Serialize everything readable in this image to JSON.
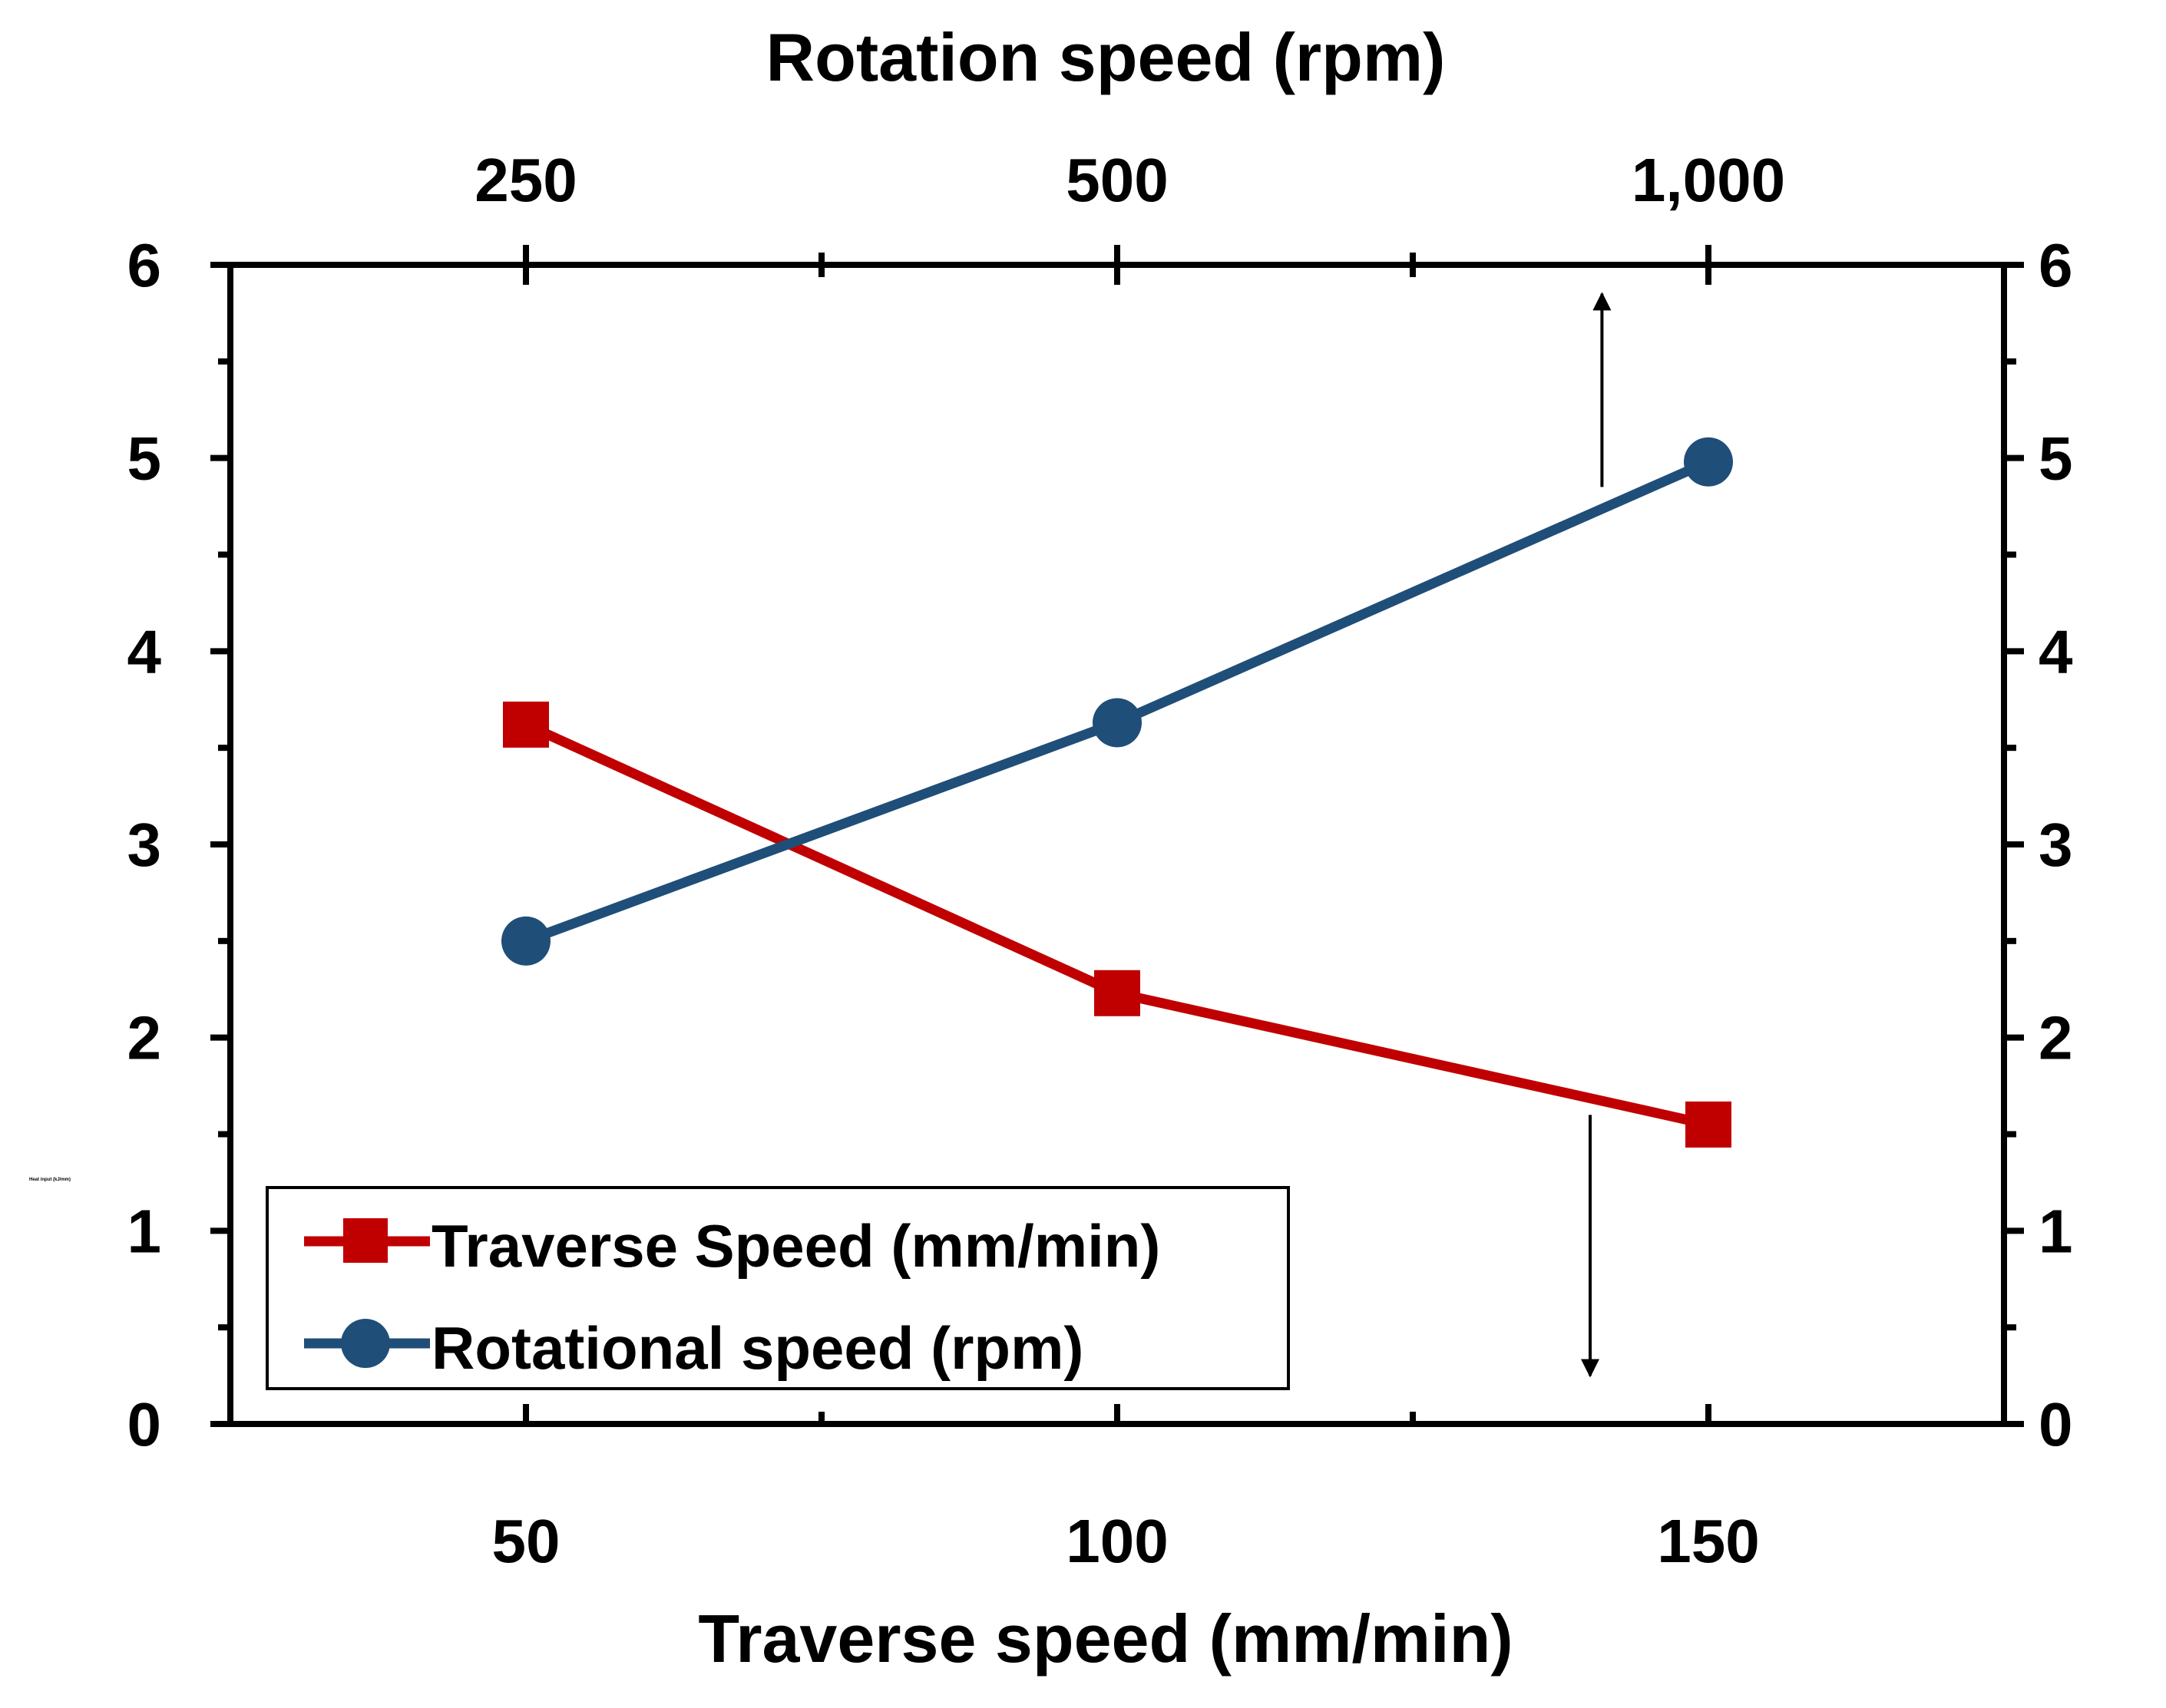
{
  "chart_data": {
    "type": "line",
    "title": "",
    "top_axis_label": "Rotation speed (rpm)",
    "top_ticks": [
      {
        "x": 50,
        "label": "250"
      },
      {
        "x": 100,
        "label": "500"
      },
      {
        "x": 150,
        "label": "1,000"
      }
    ],
    "xlabel": "Traverse speed (mm/min)",
    "x_ticks": [
      50,
      100,
      150
    ],
    "xlim": [
      25,
      175
    ],
    "x_minor_step": 25,
    "ylabel": "Heat input (kJ/mm)",
    "ylim": [
      0,
      6
    ],
    "y_ticks": [
      0,
      1,
      2,
      3,
      4,
      5,
      6
    ],
    "y_minor_step": 0.5,
    "grid": false,
    "legend_position": "bottom-left",
    "series": [
      {
        "name": "Traverse Speed (mm/min)",
        "marker": "square",
        "color": "#c00000",
        "x": [
          50,
          100,
          150
        ],
        "values": [
          3.62,
          2.23,
          1.55
        ]
      },
      {
        "name": "Rotational speed (rpm)",
        "marker": "circle",
        "color": "#1f4e79",
        "x": [
          50,
          100,
          150
        ],
        "values": [
          2.5,
          3.63,
          4.98
        ]
      }
    ],
    "annotations": [
      {
        "type": "arrow",
        "direction": "up",
        "x": 141,
        "from": 4.85,
        "to": 5.85
      },
      {
        "type": "arrow",
        "direction": "down",
        "x": 140,
        "from": 1.6,
        "to": 0.25
      }
    ]
  }
}
